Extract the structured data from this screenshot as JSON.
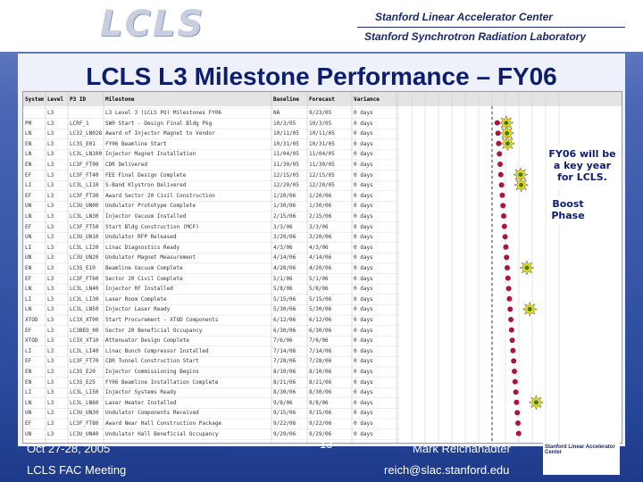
{
  "header": {
    "logo": "LCLS",
    "org_line1": "Stanford Linear Accelerator Center",
    "org_line2": "Stanford Synchrotron Radiation Laboratory"
  },
  "title": "LCLS L3 Milestone Performance – FY06",
  "table": {
    "columns": [
      "System",
      "Level",
      "P3 ID",
      "Milestone",
      "Baseline",
      "Forecast",
      "Variance"
    ],
    "rows": [
      [
        "",
        "L3",
        "",
        "L3 Level 3 (LCLS PO) Milestones FY06",
        "NA",
        "9/23/05",
        "0 days"
      ],
      [
        "PM",
        "L3",
        "LCRF_1",
        "SW0 Start - Design Final Bldg Pkg",
        "10/3/05",
        "10/3/05",
        "0 days"
      ],
      [
        "LN",
        "L3",
        "LC32_LN028",
        "Award of Injector Magnet to Vendor",
        "10/11/05",
        "10/11/05",
        "0 days"
      ],
      [
        "EN",
        "L3",
        "LC3S_E01",
        "FY06 Beamline Start",
        "10/31/05",
        "10/31/05",
        "0 days"
      ],
      [
        "LN",
        "L3",
        "LC3L_LN100",
        "Injector Magnet Installation",
        "11/04/05",
        "11/04/05",
        "0 days"
      ],
      [
        "EN",
        "L3",
        "LC3F_FT00",
        "CDR Delivered",
        "11/30/05",
        "11/30/05",
        "0 days"
      ],
      [
        "EF",
        "L3",
        "LC3F_FT40",
        "FEE Final Design Complete",
        "12/15/05",
        "12/15/05",
        "0 days"
      ],
      [
        "LI",
        "L3",
        "LC3L_LI10",
        "S-Band Klystron Delivered",
        "12/20/05",
        "12/20/05",
        "0 days"
      ],
      [
        "EF",
        "L3",
        "LC3F_FT30",
        "Award Sector 20 Civil Construction",
        "1/20/06",
        "1/20/06",
        "0 days"
      ],
      [
        "UN",
        "L3",
        "LC3U_UN00",
        "Undulator Prototype Complete",
        "1/30/06",
        "1/30/06",
        "0 days"
      ],
      [
        "LN",
        "L3",
        "LC3L_LN30",
        "Injector Vacuum Installed",
        "2/15/06",
        "2/15/06",
        "0 days"
      ],
      [
        "EF",
        "L3",
        "LC3F_FT50",
        "Start Bldg Construction (MCF)",
        "3/3/06",
        "3/3/06",
        "0 days"
      ],
      [
        "UN",
        "L3",
        "LC3U_UN10",
        "Undulator RFP Released",
        "3/20/06",
        "3/20/06",
        "0 days"
      ],
      [
        "LI",
        "L3",
        "LC3L_LI20",
        "Linac Diagnostics Ready",
        "4/3/06",
        "4/3/06",
        "0 days"
      ],
      [
        "UN",
        "L3",
        "LC3U_UN20",
        "Undulator Magnet Measurement",
        "4/14/06",
        "4/14/06",
        "0 days"
      ],
      [
        "EN",
        "L3",
        "LC3S_E10",
        "Beamline Vacuum Complete",
        "4/20/06",
        "4/20/06",
        "0 days"
      ],
      [
        "EF",
        "L3",
        "LC3F_FT60",
        "Sector 20 Civil Complete",
        "5/1/06",
        "5/1/06",
        "0 days"
      ],
      [
        "LN",
        "L3",
        "LC3L_LN40",
        "Injector RF Installed",
        "5/8/06",
        "5/8/06",
        "0 days"
      ],
      [
        "LI",
        "L3",
        "LC3L_LI30",
        "Laser Room Complete",
        "5/15/06",
        "5/15/06",
        "0 days"
      ],
      [
        "LN",
        "L3",
        "LC3L_LN50",
        "Injector Laser Ready",
        "5/30/06",
        "5/30/06",
        "0 days"
      ],
      [
        "XTOD",
        "L3",
        "LC3X_XT00",
        "Start Procurement - XTOD Components",
        "6/12/06",
        "6/12/06",
        "0 days"
      ],
      [
        "EF",
        "L3",
        "LC3BEO_00",
        "Sector 20 Beneficial Occupancy",
        "6/30/06",
        "6/30/06",
        "0 days"
      ],
      [
        "XTOD",
        "L3",
        "LC3X_XT10",
        "Attenuator Design Complete",
        "7/6/06",
        "7/6/06",
        "0 days"
      ],
      [
        "LI",
        "L3",
        "LC3L_LI40",
        "Linac Bunch Compressor Installed",
        "7/14/06",
        "7/14/06",
        "0 days"
      ],
      [
        "EF",
        "L3",
        "LC3F_FT70",
        "CDR Tunnel Construction Start",
        "7/28/06",
        "7/28/06",
        "0 days"
      ],
      [
        "EN",
        "L3",
        "LC3S_E20",
        "Injector Commissioning Begins",
        "8/10/06",
        "8/10/06",
        "0 days"
      ],
      [
        "EN",
        "L3",
        "LC3S_E25",
        "FY06 Beamline Installation Complete",
        "8/21/06",
        "8/21/06",
        "0 days"
      ],
      [
        "LI",
        "L3",
        "LC3L_LI50",
        "Injector Systems Ready",
        "8/30/06",
        "8/30/06",
        "0 days"
      ],
      [
        "LN",
        "L3",
        "LC3L_LN60",
        "Laser Heater Installed",
        "9/8/06",
        "9/8/06",
        "0 days"
      ],
      [
        "UN",
        "L3",
        "LC3U_UN30",
        "Undulator Components Received",
        "9/15/06",
        "9/15/06",
        "0 days"
      ],
      [
        "EF",
        "L3",
        "LC3F_FT80",
        "Award Near Hall Construction Package",
        "9/22/06",
        "9/22/06",
        "0 days"
      ],
      [
        "UN",
        "L3",
        "LC3U_UN40",
        "Undulator Hall Beneficial Occupancy",
        "9/29/06",
        "9/29/06",
        "0 days"
      ]
    ]
  },
  "callouts": [
    "FY06 will be a key year for LCLS.",
    "Boost Phase"
  ],
  "footer": {
    "date": "Oct 27-28, 2005",
    "meeting": "LCLS FAC Meeting",
    "page": "13",
    "presenter": "Mark Reichanadter",
    "email": "reich@slac.stanford.edu",
    "logo": "Stanford Linear Accelerator Center"
  }
}
